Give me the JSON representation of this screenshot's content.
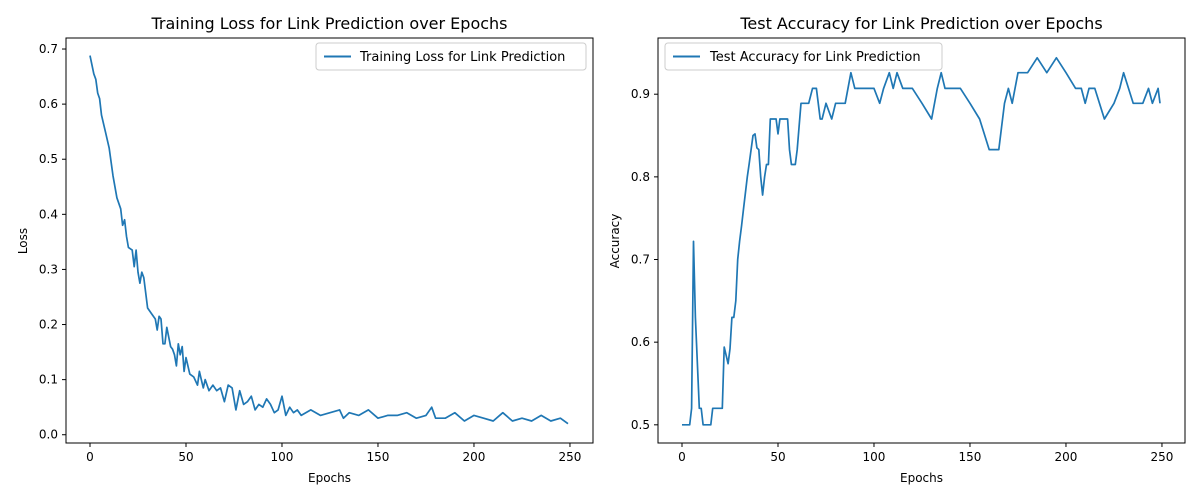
{
  "chart_data": [
    {
      "type": "line",
      "title": "Training Loss for Link Prediction over Epochs",
      "xlabel": "Epochs",
      "ylabel": "Loss",
      "xlim": [
        -12.5,
        262
      ],
      "ylim": [
        -0.015,
        0.72
      ],
      "xticks": [
        0,
        50,
        100,
        150,
        200,
        250
      ],
      "xtick_labels": [
        "0",
        "50",
        "100",
        "150",
        "200",
        "250"
      ],
      "yticks": [
        0.0,
        0.1,
        0.2,
        0.3,
        0.4,
        0.5,
        0.6,
        0.7
      ],
      "ytick_labels": [
        "0.0",
        "0.1",
        "0.2",
        "0.3",
        "0.4",
        "0.5",
        "0.6",
        "0.7"
      ],
      "grid": false,
      "legend_position": "top-right",
      "color": "#1f77b4",
      "series": [
        {
          "name": "Training Loss for Link Prediction",
          "x": [
            0,
            2,
            3,
            4,
            5,
            6,
            8,
            10,
            12,
            14,
            16,
            17,
            18,
            19,
            20,
            22,
            23,
            24,
            25,
            26,
            27,
            28,
            30,
            32,
            34,
            35,
            36,
            37,
            38,
            39,
            40,
            42,
            43,
            44,
            45,
            46,
            47,
            48,
            49,
            50,
            52,
            54,
            56,
            57,
            58,
            59,
            60,
            62,
            64,
            66,
            68,
            70,
            72,
            74,
            76,
            78,
            80,
            82,
            84,
            86,
            88,
            90,
            92,
            94,
            96,
            98,
            100,
            102,
            104,
            106,
            108,
            110,
            115,
            120,
            125,
            130,
            132,
            135,
            140,
            145,
            150,
            155,
            160,
            165,
            170,
            175,
            178,
            180,
            185,
            190,
            195,
            200,
            205,
            210,
            215,
            220,
            225,
            230,
            235,
            240,
            245,
            249
          ],
          "y": [
            0.688,
            0.655,
            0.645,
            0.62,
            0.61,
            0.58,
            0.55,
            0.52,
            0.47,
            0.43,
            0.41,
            0.38,
            0.39,
            0.36,
            0.34,
            0.335,
            0.305,
            0.335,
            0.295,
            0.275,
            0.295,
            0.285,
            0.23,
            0.22,
            0.21,
            0.19,
            0.215,
            0.21,
            0.165,
            0.165,
            0.195,
            0.16,
            0.155,
            0.145,
            0.125,
            0.165,
            0.145,
            0.16,
            0.115,
            0.14,
            0.11,
            0.105,
            0.09,
            0.115,
            0.1,
            0.085,
            0.1,
            0.08,
            0.09,
            0.08,
            0.085,
            0.06,
            0.09,
            0.085,
            0.045,
            0.08,
            0.055,
            0.06,
            0.07,
            0.045,
            0.055,
            0.05,
            0.065,
            0.055,
            0.04,
            0.045,
            0.07,
            0.035,
            0.05,
            0.04,
            0.045,
            0.035,
            0.045,
            0.035,
            0.04,
            0.045,
            0.03,
            0.04,
            0.035,
            0.045,
            0.03,
            0.035,
            0.035,
            0.04,
            0.03,
            0.035,
            0.05,
            0.03,
            0.03,
            0.04,
            0.025,
            0.035,
            0.03,
            0.025,
            0.04,
            0.025,
            0.03,
            0.025,
            0.035,
            0.025,
            0.03,
            0.02
          ]
        }
      ]
    },
    {
      "type": "line",
      "title": "Test Accuracy for Link Prediction over Epochs",
      "xlabel": "Epochs",
      "ylabel": "Accuracy",
      "xlim": [
        -12.5,
        262
      ],
      "ylim": [
        0.478,
        0.968
      ],
      "xticks": [
        0,
        50,
        100,
        150,
        200,
        250
      ],
      "xtick_labels": [
        "0",
        "50",
        "100",
        "150",
        "200",
        "250"
      ],
      "yticks": [
        0.5,
        0.6,
        0.7,
        0.8,
        0.9
      ],
      "ytick_labels": [
        "0.5",
        "0.6",
        "0.7",
        "0.8",
        "0.9"
      ],
      "grid": false,
      "legend_position": "top-left",
      "color": "#1f77b4",
      "series": [
        {
          "name": "Test Accuracy for Link Prediction",
          "x": [
            0,
            4,
            5,
            6,
            7,
            9,
            10,
            11,
            12,
            15,
            16,
            17,
            18,
            20,
            21,
            22,
            24,
            25,
            26,
            27,
            28,
            29,
            30,
            31,
            32,
            34,
            35,
            37,
            38,
            39,
            40,
            41,
            42,
            43,
            44,
            45,
            46,
            47,
            48,
            49,
            50,
            51,
            52,
            53,
            54,
            55,
            56,
            57,
            58,
            59,
            60,
            62,
            64,
            66,
            68,
            70,
            72,
            73,
            75,
            78,
            80,
            85,
            88,
            90,
            95,
            100,
            103,
            105,
            108,
            110,
            112,
            115,
            120,
            125,
            130,
            133,
            135,
            137,
            140,
            145,
            150,
            155,
            160,
            163,
            165,
            168,
            170,
            172,
            175,
            180,
            185,
            190,
            195,
            200,
            205,
            208,
            210,
            212,
            215,
            220,
            225,
            228,
            230,
            235,
            240,
            243,
            245,
            248,
            249
          ],
          "y": [
            0.5,
            0.5,
            0.52,
            0.722,
            0.63,
            0.52,
            0.52,
            0.5,
            0.5,
            0.5,
            0.52,
            0.52,
            0.52,
            0.52,
            0.52,
            0.594,
            0.574,
            0.592,
            0.63,
            0.63,
            0.65,
            0.7,
            0.722,
            0.74,
            0.76,
            0.8,
            0.816,
            0.85,
            0.852,
            0.835,
            0.833,
            0.8,
            0.778,
            0.8,
            0.815,
            0.815,
            0.87,
            0.87,
            0.87,
            0.87,
            0.852,
            0.87,
            0.87,
            0.87,
            0.87,
            0.87,
            0.833,
            0.815,
            0.815,
            0.815,
            0.833,
            0.889,
            0.889,
            0.889,
            0.907,
            0.907,
            0.87,
            0.87,
            0.889,
            0.87,
            0.889,
            0.889,
            0.926,
            0.907,
            0.907,
            0.907,
            0.889,
            0.907,
            0.926,
            0.907,
            0.926,
            0.907,
            0.907,
            0.889,
            0.87,
            0.907,
            0.926,
            0.907,
            0.907,
            0.907,
            0.889,
            0.87,
            0.833,
            0.833,
            0.833,
            0.889,
            0.907,
            0.889,
            0.926,
            0.926,
            0.944,
            0.926,
            0.944,
            0.926,
            0.907,
            0.907,
            0.889,
            0.907,
            0.907,
            0.87,
            0.889,
            0.907,
            0.926,
            0.889,
            0.889,
            0.907,
            0.889,
            0.907,
            0.889
          ]
        }
      ]
    }
  ]
}
